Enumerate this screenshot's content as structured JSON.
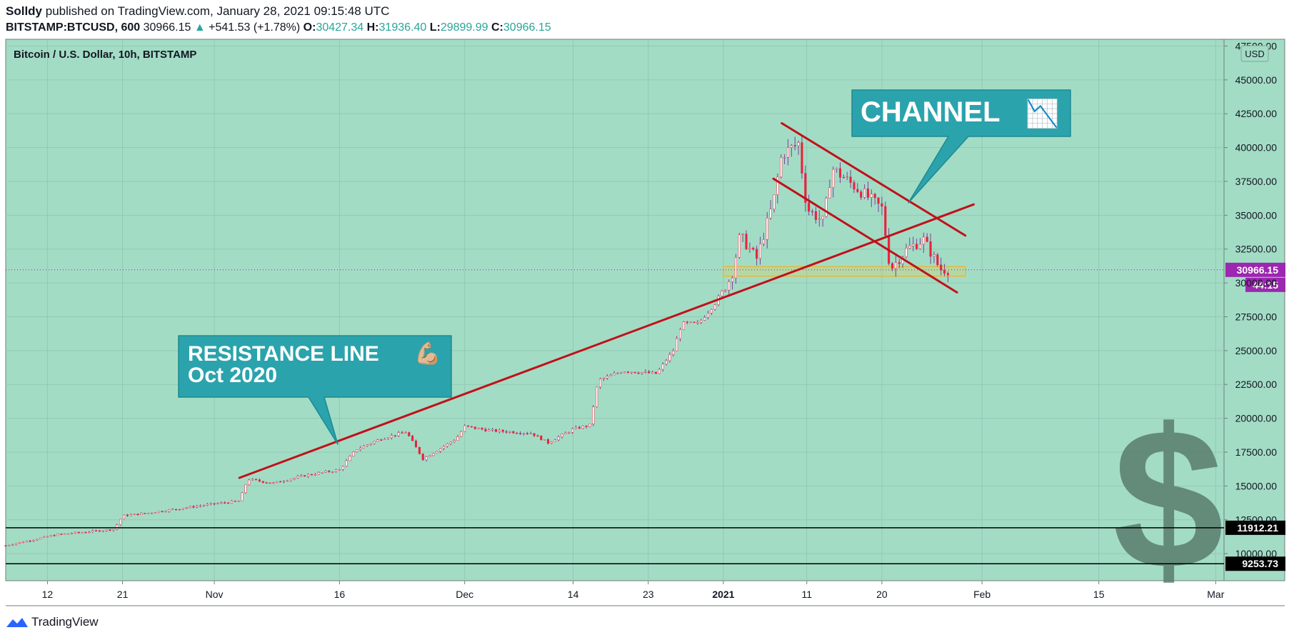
{
  "header": {
    "author": "Solldy",
    "published_text": "published on TradingView.com, January 28, 2021 09:15:48 UTC",
    "symbol": "BITSTAMP:BTCUSD, 600",
    "last": "30966.15",
    "change": "+541.53 (+1.78%)",
    "o_label": "O:",
    "o": "30427.34",
    "h_label": "H:",
    "h": "31936.40",
    "l_label": "L:",
    "l": "29899.99",
    "c_label": "C:",
    "c": "30966.15"
  },
  "footer": {
    "brand": "TradingView"
  },
  "colors": {
    "background": "#a3dcc5",
    "up": "#ffffff",
    "down": "#e8233b",
    "trendline": "#c0111a",
    "callout": "#2ba3ac",
    "last_price": "#9c27b0"
  },
  "chart_data": {
    "type": "candlestick",
    "title": "Bitcoin / U.S. Dollar, 10h, BITSTAMP",
    "currency_label": "USD",
    "ylim": [
      8000,
      48000
    ],
    "y_ticks": [
      "10000.00",
      "12500.00",
      "15000.00",
      "17500.00",
      "20000.00",
      "22500.00",
      "25000.00",
      "27500.00",
      "30000.00",
      "32500.00",
      "35000.00",
      "37500.00",
      "40000.00",
      "42500.00",
      "45000.00",
      "47500.00"
    ],
    "x_ticks": [
      "12",
      "21",
      "Nov",
      "16",
      "Dec",
      "14",
      "23",
      "2021",
      "11",
      "20",
      "Feb",
      "15",
      "Mar"
    ],
    "x_tick_dates": [
      "2020-10-12",
      "2020-10-21",
      "2020-11-01",
      "2020-11-16",
      "2020-12-01",
      "2020-12-14",
      "2020-12-23",
      "2021-01-01",
      "2021-01-11",
      "2021-01-20",
      "2021-02-01",
      "2021-02-15",
      "2021-03-01"
    ],
    "xlim": [
      "2020-10-07",
      "2021-03-02"
    ],
    "price_path": [
      [
        "2020-10-07",
        10600
      ],
      [
        "2020-10-13",
        11400
      ],
      [
        "2020-10-20",
        11800
      ],
      [
        "2020-10-21",
        12800
      ],
      [
        "2020-10-24",
        13000
      ],
      [
        "2020-10-31",
        13600
      ],
      [
        "2020-11-04",
        13900
      ],
      [
        "2020-11-05",
        15500
      ],
      [
        "2020-11-08",
        15200
      ],
      [
        "2020-11-12",
        15800
      ],
      [
        "2020-11-16",
        16200
      ],
      [
        "2020-11-18",
        17700
      ],
      [
        "2020-11-21",
        18500
      ],
      [
        "2020-11-24",
        19000
      ],
      [
        "2020-11-26",
        17000
      ],
      [
        "2020-11-30",
        18500
      ],
      [
        "2020-12-01",
        19400
      ],
      [
        "2020-12-04",
        19100
      ],
      [
        "2020-12-09",
        18900
      ],
      [
        "2020-12-11",
        18200
      ],
      [
        "2020-12-14",
        19200
      ],
      [
        "2020-12-16",
        19500
      ],
      [
        "2020-12-17",
        22800
      ],
      [
        "2020-12-20",
        23500
      ],
      [
        "2020-12-24",
        23300
      ],
      [
        "2020-12-26",
        25000
      ],
      [
        "2020-12-27",
        27000
      ],
      [
        "2020-12-29",
        27000
      ],
      [
        "2020-12-31",
        28500
      ],
      [
        "2021-01-02",
        30500
      ],
      [
        "2021-01-03",
        33500
      ],
      [
        "2021-01-05",
        31800
      ],
      [
        "2021-01-07",
        36000
      ],
      [
        "2021-01-08",
        39500
      ],
      [
        "2021-01-10",
        40300
      ],
      [
        "2021-01-11",
        35500
      ],
      [
        "2021-01-13",
        34500
      ],
      [
        "2021-01-14",
        38500
      ],
      [
        "2021-01-16",
        37500
      ],
      [
        "2021-01-18",
        36500
      ],
      [
        "2021-01-20",
        35500
      ],
      [
        "2021-01-21",
        31000
      ],
      [
        "2021-01-23",
        32500
      ],
      [
        "2021-01-25",
        33200
      ],
      [
        "2021-01-27",
        31000
      ],
      [
        "2021-01-28",
        30966
      ]
    ],
    "trendlines": [
      {
        "name": "resistance-line",
        "from": [
          "2020-11-04",
          15600
        ],
        "to": [
          "2021-01-31",
          35800
        ]
      },
      {
        "name": "channel-upper",
        "from": [
          "2021-01-08",
          41800
        ],
        "to": [
          "2021-01-30",
          33500
        ]
      },
      {
        "name": "channel-lower",
        "from": [
          "2021-01-07",
          37700
        ],
        "to": [
          "2021-01-29",
          29300
        ]
      }
    ],
    "zone": {
      "from": "2021-01-01",
      "to": "2021-01-30",
      "low": 30500,
      "high": 31200
    },
    "horizontal_levels": [
      {
        "value": 11912.21,
        "label": "11912.21"
      },
      {
        "value": 9253.73,
        "label": "9253.73"
      }
    ],
    "last_price": {
      "value": 30966.15,
      "label": "30966.15",
      "countdown": "44:15"
    },
    "annotations": [
      {
        "name": "resistance-callout",
        "lines": [
          "RESISTANCE LINE",
          "Oct 2020"
        ],
        "emoji": "💪🏼"
      },
      {
        "name": "channel-callout",
        "lines": [
          "CHANNEL"
        ],
        "emoji": "📉"
      }
    ],
    "watermark": "$"
  }
}
